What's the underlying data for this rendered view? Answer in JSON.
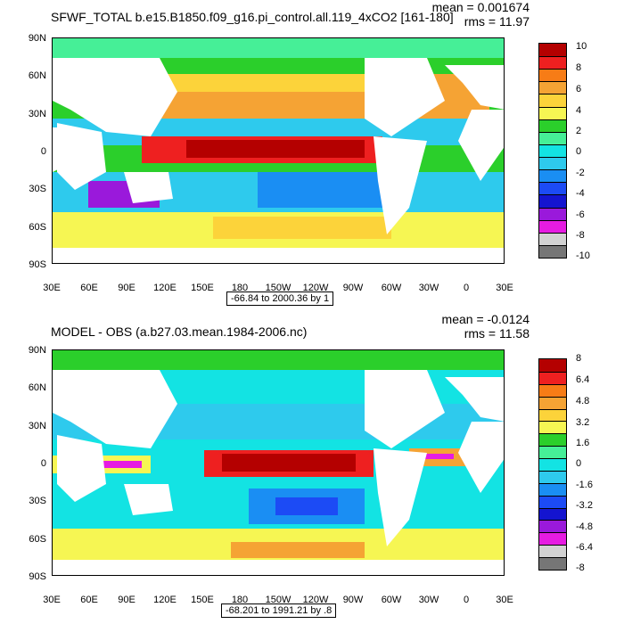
{
  "top": {
    "title": "SFWF_TOTAL b.e15.B1850.f09_g16.pi_control.all.119_4xCO2 [161-180]",
    "mean": "mean = 0.001674",
    "rms": "rms = 11.97",
    "range": "-66.84 to 2000.36 by 1",
    "colorbar_labels": [
      "10",
      "8",
      "6",
      "4",
      "2",
      "0",
      "-2",
      "-4",
      "-6",
      "-8",
      "-10"
    ],
    "colors": [
      "#b40000",
      "#ee2020",
      "#f77c16",
      "#f5a334",
      "#fcd33a",
      "#f6f653",
      "#2bcf2b",
      "#46ef97",
      "#13e3e3",
      "#2ecaed",
      "#1a8ef3",
      "#1c4bf5",
      "#1414d0",
      "#9a19db",
      "#e61ce2",
      "#d2d2d2",
      "#767676"
    ],
    "latitude_labels": [
      "90N",
      "60N",
      "30N",
      "0",
      "30S",
      "60S",
      "90S"
    ],
    "longitude_labels": [
      "30E",
      "60E",
      "90E",
      "120E",
      "150E",
      "180",
      "150W",
      "120W",
      "90W",
      "60W",
      "30W",
      "0",
      "30E"
    ]
  },
  "bottom": {
    "title": "MODEL - OBS (a.b27.03.mean.1984-2006.nc)",
    "mean": "mean = -0.0124",
    "rms": "rms = 11.58",
    "range": "-68.201 to 1991.21 by .8",
    "colorbar_labels": [
      "8",
      "6.4",
      "4.8",
      "3.2",
      "1.6",
      "0",
      "-1.6",
      "-3.2",
      "-4.8",
      "-6.4",
      "-8"
    ],
    "latitude_labels": [
      "90N",
      "60N",
      "30N",
      "0",
      "30S",
      "60S",
      "90S"
    ],
    "longitude_labels": [
      "30E",
      "60E",
      "90E",
      "120E",
      "150E",
      "180",
      "150W",
      "120W",
      "90W",
      "60W",
      "30W",
      "0",
      "30E"
    ]
  }
}
